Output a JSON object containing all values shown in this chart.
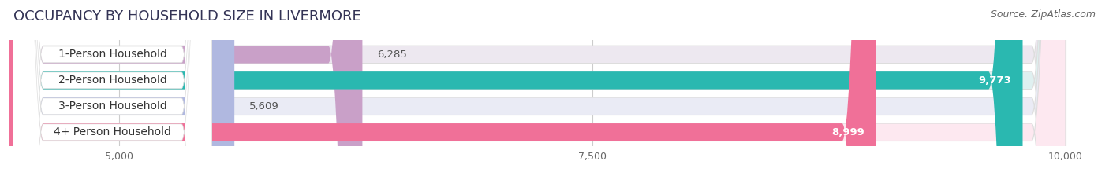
{
  "title": "OCCUPANCY BY HOUSEHOLD SIZE IN LIVERMORE",
  "source": "Source: ZipAtlas.com",
  "categories": [
    "1-Person Household",
    "2-Person Household",
    "3-Person Household",
    "4+ Person Household"
  ],
  "values": [
    6285,
    9773,
    5609,
    8999
  ],
  "bar_colors": [
    "#c9a0c8",
    "#2ab8b0",
    "#b0b8e0",
    "#f07098"
  ],
  "bg_colors": [
    "#ede8f0",
    "#dff0f0",
    "#eaebf5",
    "#fde8f0"
  ],
  "label_text_colors": [
    "#444444",
    "#444444",
    "#444444",
    "#444444"
  ],
  "value_inside": [
    false,
    true,
    false,
    true
  ],
  "x_min": 5000,
  "x_max": 10000,
  "x_ticks": [
    5000,
    7500,
    10000
  ],
  "x_tick_labels": [
    "5,000",
    "7,500",
    "10,000"
  ],
  "title_fontsize": 13,
  "source_fontsize": 9,
  "bar_label_fontsize": 9.5,
  "axis_label_fontsize": 9,
  "category_fontsize": 10
}
